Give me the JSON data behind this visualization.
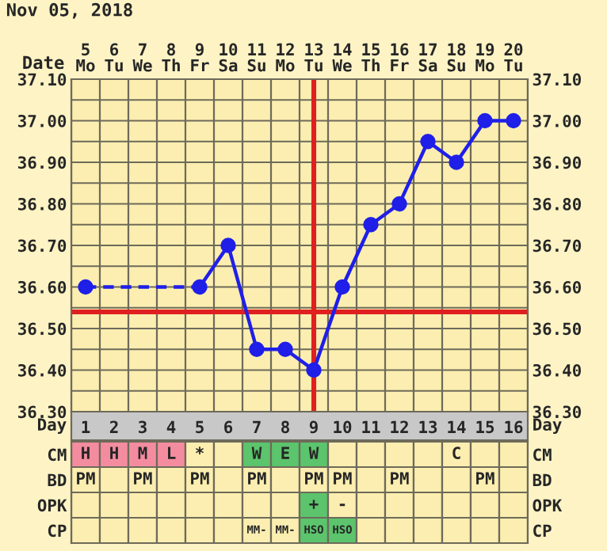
{
  "chart_data": [
    {
      "type": "line",
      "title": "Nov 05, 2018",
      "xlabel": "Day",
      "x2label": "Date",
      "categories": [
        "1",
        "2",
        "3",
        "4",
        "5",
        "6",
        "7",
        "8",
        "9",
        "10",
        "11",
        "12",
        "13",
        "14",
        "15",
        "16"
      ],
      "series": [
        {
          "color": "#1f1fe8",
          "values": [
            36.6,
            null,
            null,
            null,
            36.6,
            36.7,
            36.45,
            36.45,
            36.4,
            36.6,
            36.75,
            36.8,
            36.95,
            36.9,
            37.0,
            37.0
          ]
        }
      ],
      "ylim": [
        36.3,
        37.1
      ],
      "yticks": [
        {
          "value": 36.3,
          "label": "36.30"
        },
        {
          "value": 36.35,
          "label": null
        },
        {
          "value": 36.4,
          "label": "36.40"
        },
        {
          "value": 36.45,
          "label": null
        },
        {
          "value": 36.5,
          "label": "36.50"
        },
        {
          "value": 36.55,
          "label": null
        },
        {
          "value": 36.6,
          "label": "36.60"
        },
        {
          "value": 36.65,
          "label": null
        },
        {
          "value": 36.7,
          "label": "36.70"
        },
        {
          "value": 36.75,
          "label": null
        },
        {
          "value": 36.8,
          "label": "36.80"
        },
        {
          "value": 36.85,
          "label": null
        },
        {
          "value": 36.9,
          "label": "36.90"
        },
        {
          "value": 36.95,
          "label": null
        },
        {
          "value": 37.0,
          "label": "37.00"
        },
        {
          "value": 37.05,
          "label": null
        },
        {
          "value": 37.1,
          "label": "37.10"
        }
      ],
      "y2lim": [
        36.3,
        37.1
      ],
      "y2ticks": [
        {
          "value": 36.3,
          "label": "36.30"
        },
        {
          "value": 36.4,
          "label": "36.40"
        },
        {
          "value": 36.5,
          "label": "36.50"
        },
        {
          "value": 36.6,
          "label": "36.60"
        },
        {
          "value": 36.7,
          "label": "36.70"
        },
        {
          "value": 36.8,
          "label": "36.80"
        },
        {
          "value": 36.9,
          "label": "36.90"
        },
        {
          "value": 37.0,
          "label": "37.00"
        },
        {
          "value": 37.1,
          "label": "37.10"
        }
      ],
      "x2lim": [
        "2018-11-04T12:00",
        "2018-11-20T12:00"
      ],
      "x2ticks": [
        {
          "value": "2018-11-05",
          "label": "5\nMo"
        },
        {
          "value": "2018-11-06",
          "label": "6\nTu"
        },
        {
          "value": "2018-11-07",
          "label": "7\nWe"
        },
        {
          "value": "2018-11-08",
          "label": "8\nTh"
        },
        {
          "value": "2018-11-09",
          "label": "9\nFr"
        },
        {
          "value": "2018-11-10",
          "label": "10\nSa"
        },
        {
          "value": "2018-11-11",
          "label": "11\nSu"
        },
        {
          "value": "2018-11-12",
          "label": "12\nMo"
        },
        {
          "value": "2018-11-13",
          "label": "13\nTu"
        },
        {
          "value": "2018-11-14",
          "label": "14\nWe"
        },
        {
          "value": "2018-11-15",
          "label": "15\nTh"
        },
        {
          "value": "2018-11-16",
          "label": "16\nFr"
        },
        {
          "value": "2018-11-17",
          "label": "17\nSa"
        },
        {
          "value": "2018-11-18",
          "label": "18\nSu"
        },
        {
          "value": "2018-11-19",
          "label": "19\nMo"
        },
        {
          "value": "2018-11-20",
          "label": "20\nTu"
        }
      ],
      "ref_lines": [
        {
          "axis": "x",
          "value": "9",
          "color": "#e02020"
        },
        {
          "axis": "y",
          "value": 36.54,
          "color": "#e02020"
        }
      ],
      "grid": true,
      "marker": "circle",
      "line_style": "solid"
    },
    {
      "type": "other",
      "y_categories": [
        "CM",
        "BD",
        "OPK",
        "CP"
      ],
      "y2_categories": [
        "CM",
        "BD",
        "OPK",
        "CP"
      ],
      "cell_labels": [
        [
          "H",
          "H",
          "M",
          "L",
          "*",
          null,
          "W",
          "E",
          "W",
          null,
          null,
          null,
          null,
          "C",
          null,
          null
        ],
        [
          "PM",
          null,
          "PM",
          null,
          "PM",
          null,
          "PM",
          null,
          "PM",
          "PM",
          null,
          "PM",
          null,
          null,
          "PM",
          null
        ],
        [
          null,
          null,
          null,
          null,
          null,
          null,
          null,
          null,
          "+",
          "-",
          null,
          null,
          null,
          null,
          null,
          null
        ],
        [
          null,
          null,
          null,
          null,
          null,
          null,
          "MM-",
          "MM-",
          "HSO",
          "HSO",
          null,
          null,
          null,
          null,
          null,
          null
        ]
      ],
      "colors": [
        [
          "#f48ca0",
          "#f48ca0",
          "#f48ca0",
          "#f48ca0",
          null,
          null,
          "#5cc46c",
          "#5cc46c",
          "#5cc46c",
          null,
          null,
          null,
          null,
          null,
          null,
          null
        ],
        [
          null,
          null,
          null,
          null,
          null,
          null,
          null,
          null,
          null,
          null,
          null,
          null,
          null,
          null,
          null,
          null
        ],
        [
          null,
          null,
          null,
          null,
          null,
          null,
          null,
          null,
          "#5cc46c",
          null,
          null,
          null,
          null,
          null,
          null,
          null
        ],
        [
          null,
          null,
          null,
          null,
          null,
          null,
          null,
          null,
          "#5cc46c",
          "#5cc46c",
          null,
          null,
          null,
          null,
          null,
          null
        ]
      ]
    }
  ]
}
